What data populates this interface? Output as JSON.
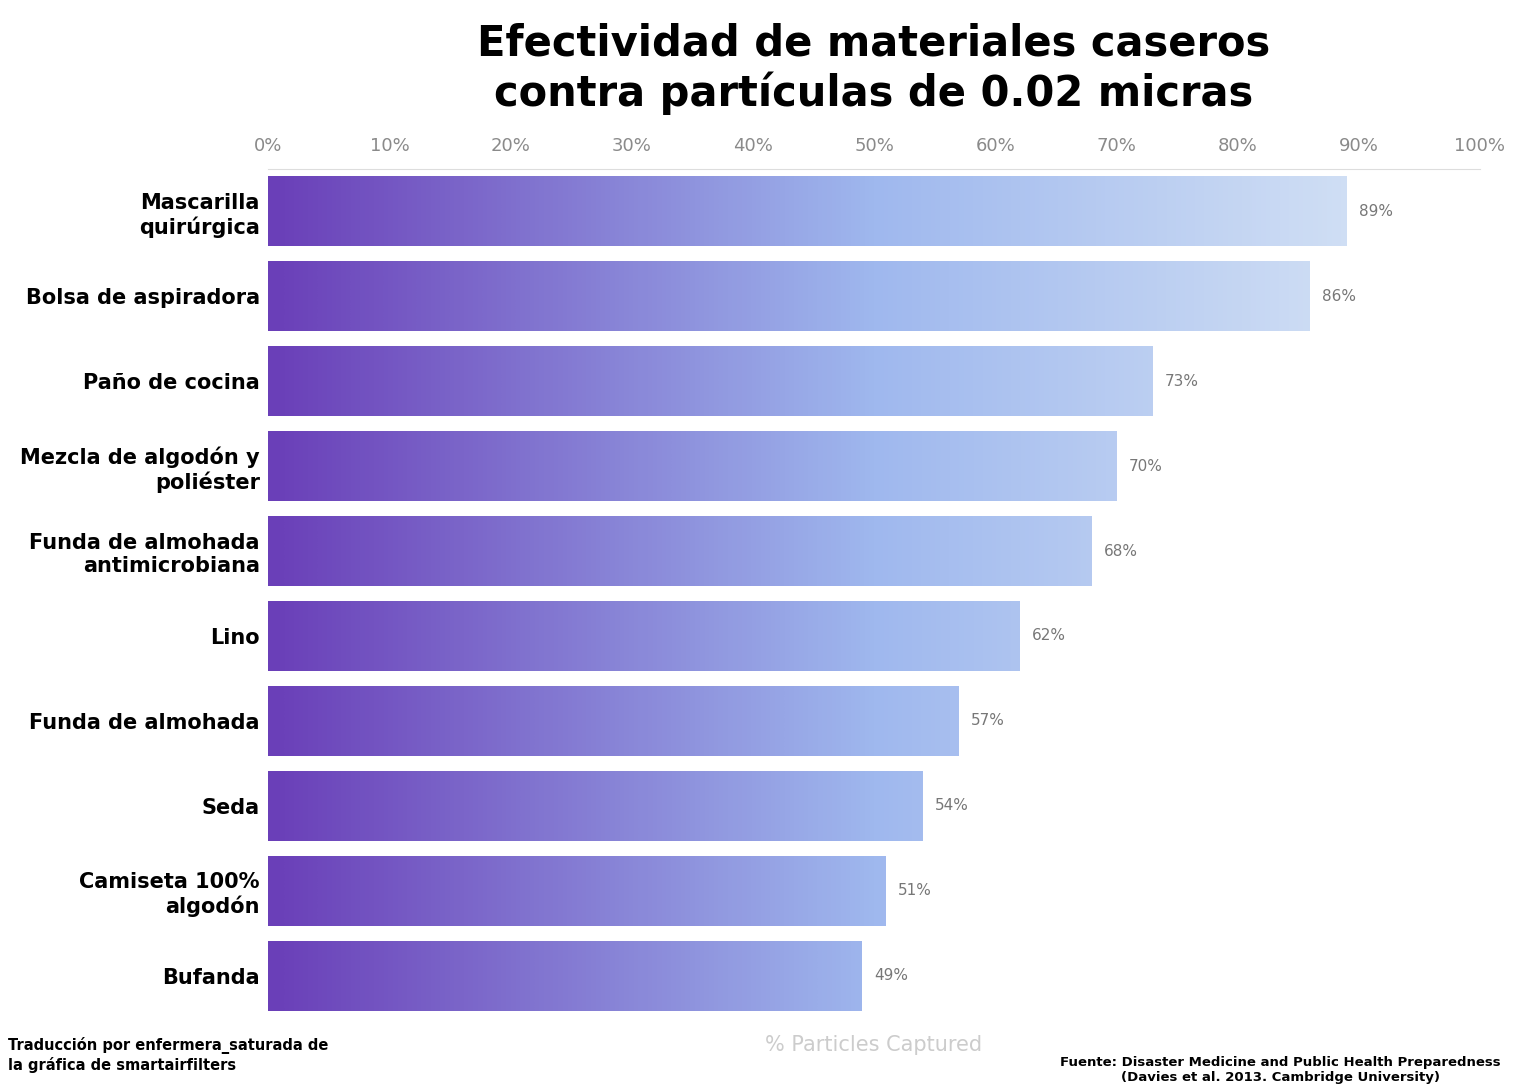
{
  "chart_data": {
    "type": "bar",
    "title": "Efectividad de materiales caseros\ncontra partículas de 0.02 micras",
    "orientation": "horizontal",
    "categories": [
      "Mascarilla quirúrgica",
      "Bolsa de aspiradora",
      "Paño de cocina",
      "Mezcla de algodón y poliéster",
      "Funda de almohada antimicrobiana",
      "Lino",
      "Funda de almohada",
      "Seda",
      "Camiseta 100% algodón",
      "Bufanda"
    ],
    "values": [
      89,
      86,
      73,
      70,
      68,
      62,
      57,
      54,
      51,
      49
    ],
    "value_labels": [
      "89%",
      "86%",
      "73%",
      "70%",
      "68%",
      "62%",
      "57%",
      "54%",
      "51%",
      "49%"
    ],
    "data_labels": true,
    "color": "#6a3fb8",
    "xlim": [
      0,
      100
    ],
    "xticks": [
      {
        "value": 0,
        "label": "0%"
      },
      {
        "value": 10,
        "label": "10%"
      },
      {
        "value": 20,
        "label": "20%"
      },
      {
        "value": 30,
        "label": "30%"
      },
      {
        "value": 40,
        "label": "40%"
      },
      {
        "value": 50,
        "label": "50%"
      },
      {
        "value": 60,
        "label": "60%"
      },
      {
        "value": 70,
        "label": "70%"
      },
      {
        "value": 80,
        "label": "80%"
      },
      {
        "value": 90,
        "label": "90%"
      },
      {
        "value": 100,
        "label": "100%"
      }
    ],
    "x_label": "% Particles Captured",
    "grid": false,
    "notes": [
      "Traducción por enfermera_saturada de la gráfica de smartairfilters",
      "Fuente: Disaster Medicine and Public Health Preparedness (Davies et al. 2013. Cambridge University)"
    ]
  }
}
